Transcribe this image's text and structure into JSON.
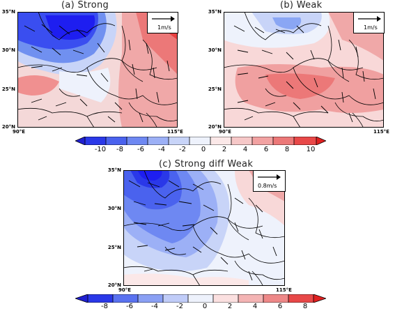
{
  "panels": [
    {
      "title": "(a) Strong",
      "ref_vector": "1m/s",
      "lat_labels": [
        "35°N",
        "30°N",
        "25°N",
        "20°N"
      ],
      "lon_labels": [
        "90°E",
        "115°E"
      ]
    },
    {
      "title": "(b) Weak",
      "ref_vector": "1m/s",
      "lat_labels": [
        "35°N",
        "30°N",
        "25°N",
        "20°N"
      ],
      "lon_labels": [
        "90°E",
        "115°E"
      ]
    },
    {
      "title": "(c) Strong diff Weak",
      "ref_vector": "0.8m/s",
      "lat_labels": [
        "35°N",
        "30°N",
        "25°N",
        "20°N"
      ],
      "lon_labels": [
        "90°E",
        "115°E"
      ]
    }
  ],
  "colorbars": [
    {
      "labels": [
        "-10",
        "-8",
        "-6",
        "-4",
        "-2",
        "0",
        "2",
        "4",
        "6",
        "8",
        "10"
      ]
    },
    {
      "labels": [
        "-8",
        "-6",
        "-4",
        "-2",
        "0",
        "2",
        "4",
        "6",
        "8"
      ]
    }
  ],
  "colors": {
    "neg_strong": "#1e1ef0",
    "neg_mid": "#7090f0",
    "neg_light": "#c8d4f8",
    "near_zero": "#eef2fc",
    "pos_light": "#f8d8d8",
    "pos_mid": "#f0a0a0",
    "pos_strong": "#e83030"
  }
}
